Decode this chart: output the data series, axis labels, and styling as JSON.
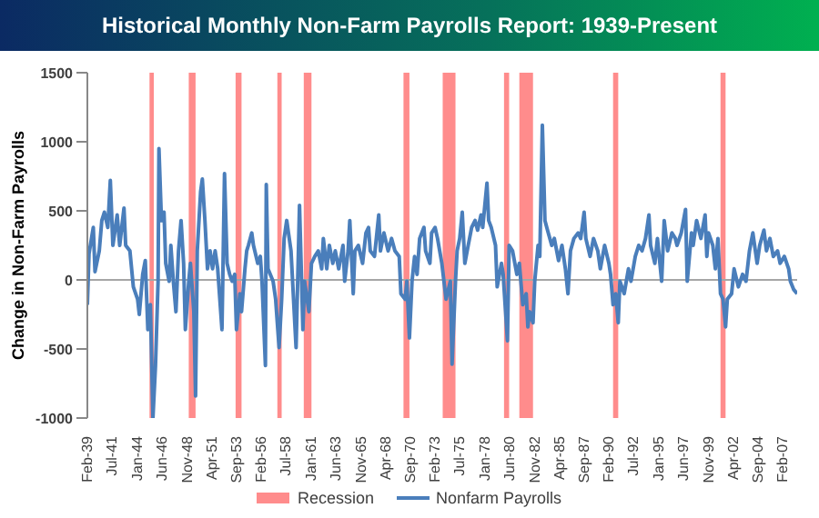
{
  "chart_data": {
    "type": "line",
    "title": "Historical Monthly Non-Farm Payrolls Report: 1939-Present",
    "ylabel": "Change in Non-Farm Payrolls",
    "xlim": [
      "1939-02",
      "2008-07"
    ],
    "xticks": [
      {
        "value": "1939-02",
        "label": "Feb-39"
      },
      {
        "value": "1941-07",
        "label": "Jul-41"
      },
      {
        "value": "1944-01",
        "label": "Jan-44"
      },
      {
        "value": "1946-06",
        "label": "Jun-46"
      },
      {
        "value": "1948-11",
        "label": "Nov-48"
      },
      {
        "value": "1951-04",
        "label": "Apr-51"
      },
      {
        "value": "1953-09",
        "label": "Sep-53"
      },
      {
        "value": "1956-02",
        "label": "Feb-56"
      },
      {
        "value": "1958-07",
        "label": "Jul-58"
      },
      {
        "value": "1961-01",
        "label": "Jan-61"
      },
      {
        "value": "1963-06",
        "label": "Jun-63"
      },
      {
        "value": "1965-11",
        "label": "Nov-65"
      },
      {
        "value": "1968-04",
        "label": "Apr-68"
      },
      {
        "value": "1970-09",
        "label": "Sep-70"
      },
      {
        "value": "1973-02",
        "label": "Feb-73"
      },
      {
        "value": "1975-07",
        "label": "Jul-75"
      },
      {
        "value": "1978-01",
        "label": "Jan-78"
      },
      {
        "value": "1980-06",
        "label": "Jun-80"
      },
      {
        "value": "1982-11",
        "label": "Nov-82"
      },
      {
        "value": "1985-04",
        "label": "Apr-85"
      },
      {
        "value": "1987-09",
        "label": "Sep-87"
      },
      {
        "value": "1990-02",
        "label": "Feb-90"
      },
      {
        "value": "1992-07",
        "label": "Jul-92"
      },
      {
        "value": "1995-01",
        "label": "Jan-95"
      },
      {
        "value": "1997-06",
        "label": "Jun-97"
      },
      {
        "value": "1999-11",
        "label": "Nov-99"
      },
      {
        "value": "2002-04",
        "label": "Apr-02"
      },
      {
        "value": "2004-09",
        "label": "Sep-04"
      },
      {
        "value": "2007-02",
        "label": "Feb-07"
      }
    ],
    "ylim": [
      -1000,
      1500
    ],
    "yticks": [
      -1000,
      -500,
      0,
      500,
      1000,
      1500
    ],
    "grid": false,
    "legend": "bottom",
    "marker": "none",
    "line_style": "solid",
    "ref_lines": [
      {
        "axis": "y",
        "value": 0,
        "color": "#a6a6a6"
      }
    ],
    "bands": [
      {
        "axis": "x",
        "from": "1945-03",
        "to": "1945-08",
        "label": "Recession",
        "color": "#ff8c8c"
      },
      {
        "axis": "x",
        "from": "1949-01",
        "to": "1949-09",
        "color": "#ff8c8c"
      },
      {
        "axis": "x",
        "from": "1953-08",
        "to": "1954-03",
        "color": "#ff8c8c"
      },
      {
        "axis": "x",
        "from": "1957-09",
        "to": "1958-02",
        "color": "#ff8c8c"
      },
      {
        "axis": "x",
        "from": "1960-04",
        "to": "1961-01",
        "color": "#ff8c8c"
      },
      {
        "axis": "x",
        "from": "1970-01",
        "to": "1970-08",
        "color": "#ff8c8c"
      },
      {
        "axis": "x",
        "from": "1973-11",
        "to": "1975-02",
        "color": "#ff8c8c"
      },
      {
        "axis": "x",
        "from": "1979-11",
        "to": "1980-05",
        "color": "#ff8c8c"
      },
      {
        "axis": "x",
        "from": "1981-05",
        "to": "1982-09",
        "color": "#ff8c8c"
      },
      {
        "axis": "x",
        "from": "1990-07",
        "to": "1991-01",
        "color": "#ff8c8c"
      },
      {
        "axis": "x",
        "from": "2001-01",
        "to": "2001-07",
        "color": "#ff8c8c"
      }
    ],
    "series": [
      {
        "name": "Nonfarm Payrolls",
        "color": "#4a7ebb",
        "x": [
          "1939-02",
          "1939-04",
          "1939-09",
          "1939-11",
          "1940-04",
          "1940-07",
          "1940-10",
          "1941-02",
          "1941-05",
          "1941-08",
          "1942-01",
          "1942-04",
          "1942-09",
          "1942-11",
          "1943-04",
          "1943-08",
          "1944-01",
          "1944-03",
          "1944-07",
          "1944-10",
          "1945-01",
          "1945-04",
          "1945-07",
          "1945-10",
          "1946-01",
          "1946-02",
          "1946-05",
          "1946-08",
          "1946-10",
          "1947-02",
          "1947-04",
          "1947-07",
          "1947-10",
          "1948-01",
          "1948-04",
          "1948-07",
          "1948-09",
          "1949-01",
          "1949-03",
          "1949-07",
          "1949-09",
          "1949-11",
          "1950-03",
          "1950-05",
          "1950-08",
          "1950-11",
          "1951-02",
          "1951-05",
          "1951-08",
          "1951-11",
          "1952-04",
          "1952-07",
          "1952-10",
          "1953-01",
          "1953-04",
          "1953-07",
          "1953-09",
          "1954-01",
          "1954-03",
          "1954-07",
          "1954-09",
          "1954-11",
          "1955-03",
          "1955-05",
          "1955-10",
          "1956-01",
          "1956-03",
          "1956-07",
          "1956-08",
          "1956-10",
          "1957-04",
          "1957-07",
          "1957-11",
          "1958-02",
          "1958-05",
          "1958-08",
          "1959-01",
          "1959-07",
          "1959-11",
          "1960-03",
          "1960-05",
          "1960-10",
          "1961-01",
          "1961-05",
          "1961-09",
          "1962-01",
          "1962-03",
          "1962-07",
          "1962-10",
          "1963-02",
          "1963-05",
          "1963-09",
          "1964-02",
          "1964-04",
          "1964-08",
          "1964-10",
          "1965-02",
          "1965-04",
          "1965-08",
          "1966-01",
          "1966-05",
          "1966-08",
          "1966-10",
          "1967-03",
          "1967-08",
          "1967-10",
          "1968-02",
          "1968-07",
          "1968-11",
          "1969-03",
          "1969-08",
          "1969-10",
          "1970-03",
          "1970-05",
          "1970-08",
          "1970-11",
          "1971-02",
          "1971-05",
          "1971-08",
          "1972-01",
          "1972-03",
          "1972-08",
          "1972-10",
          "1973-02",
          "1973-05",
          "1973-10",
          "1974-03",
          "1974-08",
          "1974-10",
          "1975-02",
          "1975-04",
          "1975-07",
          "1975-10",
          "1976-01",
          "1976-05",
          "1976-09",
          "1977-01",
          "1977-04",
          "1977-08",
          "1977-10",
          "1978-03",
          "1978-05",
          "1978-08",
          "1979-01",
          "1979-03",
          "1979-08",
          "1979-10",
          "1980-03",
          "1980-05",
          "1980-09",
          "1981-02",
          "1981-05",
          "1981-09",
          "1982-01",
          "1982-03",
          "1982-05",
          "1982-09",
          "1982-11",
          "1983-03",
          "1983-05",
          "1983-08",
          "1983-11",
          "1984-02",
          "1984-07",
          "1984-10",
          "1985-03",
          "1985-07",
          "1985-11",
          "1986-02",
          "1986-05",
          "1986-09",
          "1987-02",
          "1987-05",
          "1987-09",
          "1987-11",
          "1988-04",
          "1988-08",
          "1989-01",
          "1989-04",
          "1989-09",
          "1990-02",
          "1990-04",
          "1990-07",
          "1990-10",
          "1991-01",
          "1991-03",
          "1991-08",
          "1992-01",
          "1992-04",
          "1992-09",
          "1993-01",
          "1993-05",
          "1993-09",
          "1994-01",
          "1994-03",
          "1994-08",
          "1994-11",
          "1995-04",
          "1995-07",
          "1995-11",
          "1996-04",
          "1996-08",
          "1996-10",
          "1997-03",
          "1997-08",
          "1997-10",
          "1998-03",
          "1998-05",
          "1998-09",
          "1999-02",
          "1999-07",
          "1999-09",
          "1999-11",
          "2000-04",
          "2000-07",
          "2000-10",
          "2001-01",
          "2001-04",
          "2001-07",
          "2001-09",
          "2002-02",
          "2002-05",
          "2002-10",
          "2003-03",
          "2003-07",
          "2003-11",
          "2004-03",
          "2004-08",
          "2004-11",
          "2005-04",
          "2005-07",
          "2005-11",
          "2006-03",
          "2006-08",
          "2006-11",
          "2007-04",
          "2007-09",
          "2007-11",
          "2008-03",
          "2008-07"
        ],
        "values": [
          -180,
          190,
          380,
          60,
          210,
          430,
          490,
          380,
          720,
          250,
          470,
          250,
          520,
          250,
          210,
          -50,
          -140,
          -250,
          40,
          140,
          -360,
          -180,
          -1000,
          -620,
          -10,
          950,
          430,
          490,
          120,
          -10,
          250,
          -10,
          -230,
          210,
          430,
          120,
          -360,
          -10,
          120,
          -230,
          -840,
          210,
          640,
          730,
          430,
          80,
          210,
          80,
          210,
          80,
          -360,
          770,
          120,
          40,
          -10,
          40,
          -360,
          -100,
          -230,
          80,
          210,
          250,
          340,
          250,
          120,
          170,
          -10,
          -620,
          690,
          80,
          -10,
          -140,
          -490,
          -140,
          300,
          430,
          210,
          -490,
          540,
          -360,
          -10,
          -230,
          120,
          170,
          210,
          80,
          300,
          80,
          250,
          120,
          210,
          80,
          250,
          -10,
          210,
          430,
          -100,
          210,
          250,
          120,
          340,
          380,
          210,
          170,
          470,
          210,
          340,
          210,
          300,
          210,
          170,
          -100,
          -140,
          -10,
          -420,
          -10,
          170,
          40,
          300,
          380,
          210,
          120,
          340,
          380,
          300,
          120,
          -140,
          -10,
          -610,
          -10,
          210,
          300,
          490,
          120,
          250,
          380,
          430,
          360,
          470,
          380,
          700,
          430,
          380,
          250,
          -50,
          120,
          40,
          -440,
          250,
          210,
          40,
          120,
          -180,
          -100,
          -340,
          -230,
          -310,
          -10,
          250,
          170,
          1120,
          430,
          360,
          250,
          300,
          140,
          250,
          80,
          -100,
          210,
          300,
          340,
          300,
          490,
          300,
          170,
          300,
          210,
          80,
          250,
          120,
          40,
          -180,
          -100,
          -310,
          -10,
          -100,
          80,
          -10,
          170,
          250,
          210,
          300,
          470,
          250,
          120,
          300,
          -10,
          430,
          210,
          340,
          300,
          250,
          340,
          510,
          -10,
          340,
          250,
          430,
          300,
          470,
          170,
          340,
          250,
          80,
          300,
          -100,
          -140,
          -340,
          -140,
          -100,
          80,
          -50,
          40,
          -10,
          210,
          340,
          120,
          250,
          360,
          210,
          300,
          170,
          210,
          120,
          170,
          80,
          -10,
          -70,
          -100
        ]
      }
    ]
  }
}
